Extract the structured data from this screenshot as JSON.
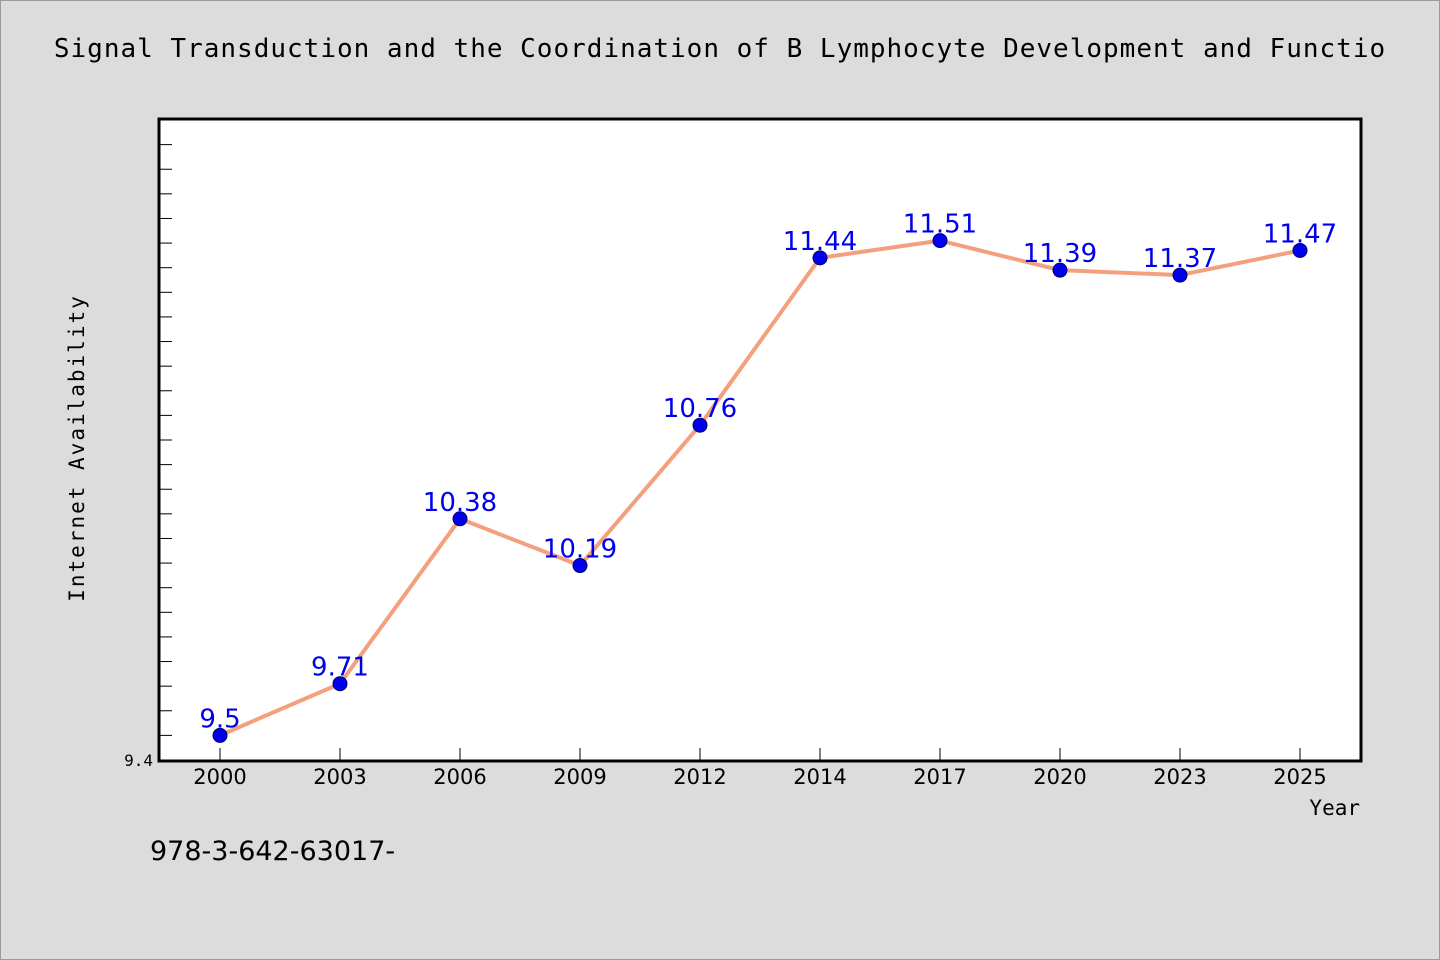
{
  "caption": "978-3-642-63017-",
  "colors": {
    "background": "#dcdcdc",
    "plot_background": "#ffffff",
    "line": "#f4a07e",
    "marker": "#0000ee",
    "data_label": "#0000ee"
  },
  "chart_data": {
    "type": "line",
    "title": "Signal Transduction and the Coordination of B Lymphocyte Development and Functio",
    "xlabel": "Year",
    "ylabel": "Internet Availability",
    "categories": [
      "2000",
      "2003",
      "2006",
      "2009",
      "2012",
      "2014",
      "2017",
      "2020",
      "2023",
      "2025"
    ],
    "series": [
      {
        "values": [
          9.5,
          9.71,
          10.38,
          10.19,
          10.76,
          11.44,
          11.51,
          11.39,
          11.37,
          11.47
        ],
        "labels": [
          "9.5",
          "9.71",
          "10.38",
          "10.19",
          "10.76",
          "11.44",
          "11.51",
          "11.39",
          "11.37",
          "11.47"
        ]
      }
    ],
    "ylim": [
      9.4,
      12.0
    ],
    "yticks_labeled": [
      "9.4"
    ],
    "grid": false,
    "legend": "none"
  }
}
